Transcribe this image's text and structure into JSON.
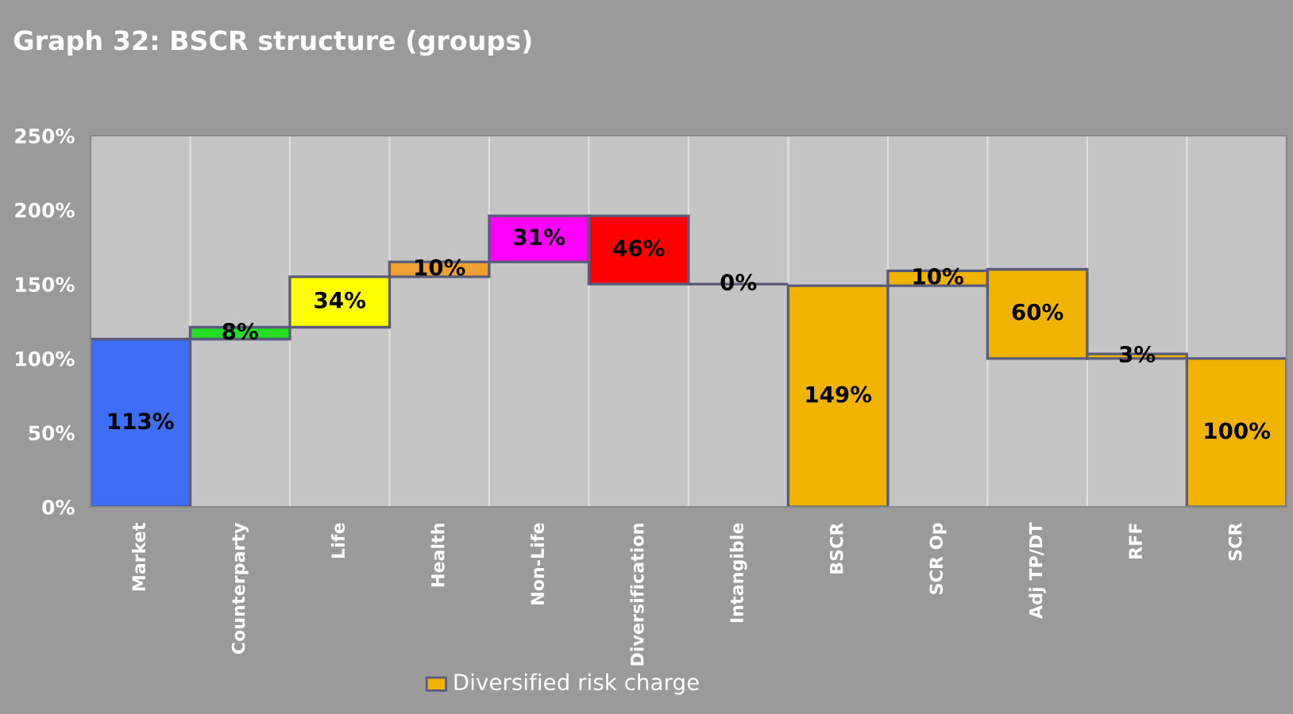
{
  "chart_data": {
    "type": "bar",
    "title": "Graph 32: BSCR structure (groups)",
    "categories": [
      "Market",
      "Counterparty",
      "Life",
      "Health",
      "Non-Life",
      "Diversification",
      "Intangible",
      "BSCR",
      "SCR Op",
      "Adj TP/DT",
      "RFF",
      "SCR"
    ],
    "base": [
      0,
      113,
      121,
      155,
      165,
      150,
      150,
      0,
      149,
      100,
      100,
      0
    ],
    "values": [
      113,
      8,
      34,
      10,
      31,
      46,
      0,
      149,
      10,
      60,
      3,
      100
    ],
    "value_labels": [
      "113%",
      "8%",
      "34%",
      "10%",
      "31%",
      "46%",
      "0%",
      "149%",
      "10%",
      "60%",
      "3%",
      "100%"
    ],
    "colors": [
      "#3d6ef5",
      "#22dd22",
      "#ffff00",
      "#f0a030",
      "#ff00ff",
      "#ff0000",
      "#5a5a7a",
      "#f0b400",
      "#f0b400",
      "#f0b400",
      "#f0b400",
      "#f0b400"
    ],
    "annotations": [
      "Diversified risk charge"
    ],
    "ylim": [
      0,
      250
    ],
    "yticks": [
      {
        "value": 0,
        "label": "0%"
      },
      {
        "value": 50,
        "label": "50%"
      },
      {
        "value": 100,
        "label": "100%"
      },
      {
        "value": 150,
        "label": "150%"
      },
      {
        "value": 200,
        "label": "200%"
      },
      {
        "value": 250,
        "label": "250%"
      }
    ]
  }
}
